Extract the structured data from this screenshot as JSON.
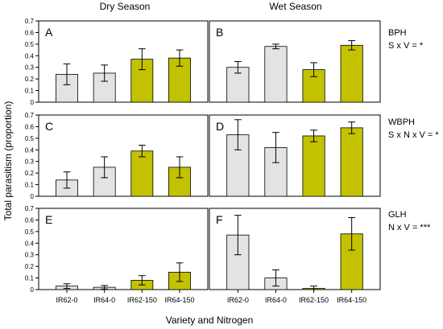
{
  "column_titles": [
    "Dry Season",
    "Wet Season"
  ],
  "ylabel": "Total parasitism (proportion)",
  "xlabel": "Variety and Nitrogen",
  "categories": [
    "IR62-0",
    "IR64-0",
    "IR62-150",
    "IR64-150"
  ],
  "bar_colors": [
    "#e3e3e3",
    "#e3e3e3",
    "#c2c200",
    "#c2c200"
  ],
  "rows": [
    {
      "pest": "BPH",
      "effect": "S x V = *"
    },
    {
      "pest": "WBPH",
      "effect": "S x N x V = *"
    },
    {
      "pest": "GLH",
      "effect": "N x V = ***"
    }
  ],
  "chart_data": [
    {
      "type": "bar",
      "panel": "A",
      "season": "Dry Season",
      "pest": "BPH",
      "categories": [
        "IR62-0",
        "IR64-0",
        "IR62-150",
        "IR64-150"
      ],
      "values": [
        0.24,
        0.25,
        0.37,
        0.38
      ],
      "errors": [
        0.09,
        0.07,
        0.09,
        0.07
      ],
      "ylim": [
        0,
        0.7
      ],
      "yticks": [
        0,
        0.1,
        0.2,
        0.3,
        0.4,
        0.5,
        0.6,
        0.7
      ]
    },
    {
      "type": "bar",
      "panel": "B",
      "season": "Wet Season",
      "pest": "BPH",
      "categories": [
        "IR62-0",
        "IR64-0",
        "IR62-150",
        "IR64-150"
      ],
      "values": [
        0.3,
        0.48,
        0.28,
        0.49
      ],
      "errors": [
        0.05,
        0.02,
        0.06,
        0.04
      ],
      "ylim": [
        0,
        0.7
      ]
    },
    {
      "type": "bar",
      "panel": "C",
      "season": "Dry Season",
      "pest": "WBPH",
      "categories": [
        "IR62-0",
        "IR64-0",
        "IR62-150",
        "IR64-150"
      ],
      "values": [
        0.14,
        0.25,
        0.39,
        0.25
      ],
      "errors": [
        0.07,
        0.09,
        0.05,
        0.09
      ],
      "ylim": [
        0,
        0.7
      ],
      "yticks": [
        0,
        0.1,
        0.2,
        0.3,
        0.4,
        0.5,
        0.6,
        0.7
      ]
    },
    {
      "type": "bar",
      "panel": "D",
      "season": "Wet Season",
      "pest": "WBPH",
      "categories": [
        "IR62-0",
        "IR64-0",
        "IR62-150",
        "IR64-150"
      ],
      "values": [
        0.53,
        0.42,
        0.52,
        0.59
      ],
      "errors": [
        0.13,
        0.13,
        0.05,
        0.05
      ],
      "ylim": [
        0,
        0.7
      ]
    },
    {
      "type": "bar",
      "panel": "E",
      "season": "Dry Season",
      "pest": "GLH",
      "categories": [
        "IR62-0",
        "IR64-0",
        "IR62-150",
        "IR64-150"
      ],
      "values": [
        0.03,
        0.02,
        0.08,
        0.15
      ],
      "errors": [
        0.02,
        0.015,
        0.04,
        0.08
      ],
      "ylim": [
        0,
        0.7
      ],
      "yticks": [
        0,
        0.1,
        0.2,
        0.3,
        0.4,
        0.5,
        0.6,
        0.7
      ]
    },
    {
      "type": "bar",
      "panel": "F",
      "season": "Wet Season",
      "pest": "GLH",
      "categories": [
        "IR62-0",
        "IR64-0",
        "IR62-150",
        "IR64-150"
      ],
      "values": [
        0.47,
        0.1,
        0.01,
        0.48
      ],
      "errors": [
        0.17,
        0.07,
        0.02,
        0.14
      ],
      "ylim": [
        0,
        0.7
      ]
    }
  ]
}
